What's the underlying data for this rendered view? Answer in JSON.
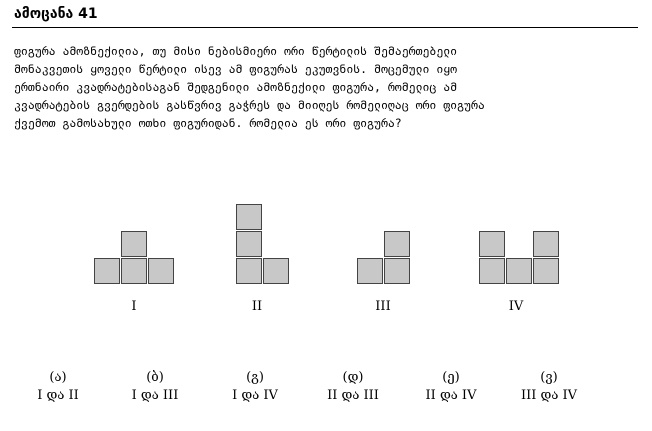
{
  "header": {
    "title": "ამოცანა 41"
  },
  "problem": {
    "lines": [
      "ფიგურა ამოზნექილია, თუ მისი ნებისმიერი ორი წერტილის შემაერთებელი",
      "მონაკვეთის ყოველი წერტილი ისევ ამ ფიგურას ეკუთვნის. მოცემული იყო",
      "ერთნაირი კვადრატებისაგან შედგენილი ამოზნექილი ფიგურა, რომელიც ამ",
      "კვადრატების გვერდების გასწვრივ გაჭრეს და მიიღეს რომელიღაც ორი ფიგურა",
      "ქვემოთ გამოსახული ოთხი ფიგურიდან. რომელია ეს ორი ფიგურა?"
    ]
  },
  "figures": [
    {
      "label": "I"
    },
    {
      "label": "II"
    },
    {
      "label": "III"
    },
    {
      "label": "IV"
    }
  ],
  "options": [
    {
      "letter": "(ა)",
      "text": "I და II"
    },
    {
      "letter": "(ბ)",
      "text": "I და III"
    },
    {
      "letter": "(გ)",
      "text": "I და IV"
    },
    {
      "letter": "(დ)",
      "text": "II და III"
    },
    {
      "letter": "(ე)",
      "text": "II და IV"
    },
    {
      "letter": "(ვ)",
      "text": "III და IV"
    }
  ]
}
